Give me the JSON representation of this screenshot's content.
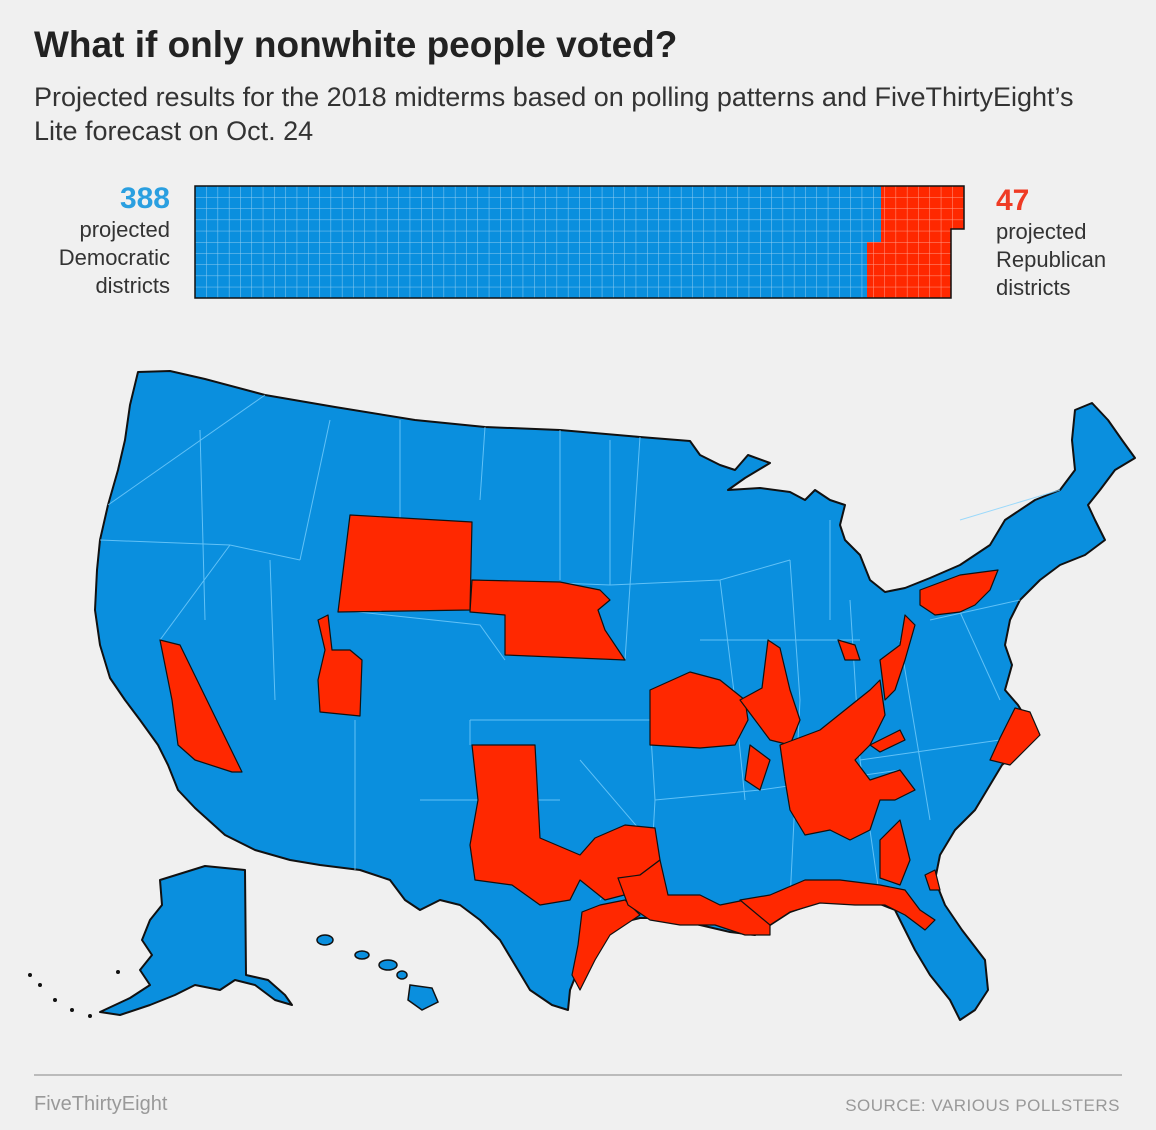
{
  "header": {
    "title": "What if only nonwhite people voted?",
    "subtitle": "Projected results for the 2018 midterms based on polling patterns and FiveThirtyEight’s Lite forecast on Oct. 24"
  },
  "tally": {
    "dem": {
      "count": "388",
      "line1": "projected",
      "line2": "Democratic",
      "line3": "districts"
    },
    "rep": {
      "count": "47",
      "line1": "projected",
      "line2": "Republican",
      "line3": "districts"
    }
  },
  "colors": {
    "dem": "#0a8fde",
    "rep": "#ff2800",
    "background": "#f0f0f0",
    "dem_text": "#2a9fe0",
    "rep_text": "#ef3b24"
  },
  "map": {
    "type": "choropleth",
    "geography": "U.S. congressional districts",
    "rep_regions": [
      "Wyoming",
      "Nebraska",
      "Eastern Nevada",
      "Central Utah",
      "West Texas",
      "Central Texas",
      "Texas Gulf Coast",
      "Southern Louisiana",
      "Southern Mississippi and Alabama",
      "Florida Panhandle",
      "Southwest Missouri",
      "Western Kentucky",
      "Tennessee",
      "Northern Alabama and Georgia",
      "Eastern Kentucky and West Virginia",
      "Western Pennsylvania",
      "Northeastern North Carolina"
    ]
  },
  "footer": {
    "brand": "FiveThirtyEight",
    "source": "SOURCE: VARIOUS POLLSTERS"
  }
}
